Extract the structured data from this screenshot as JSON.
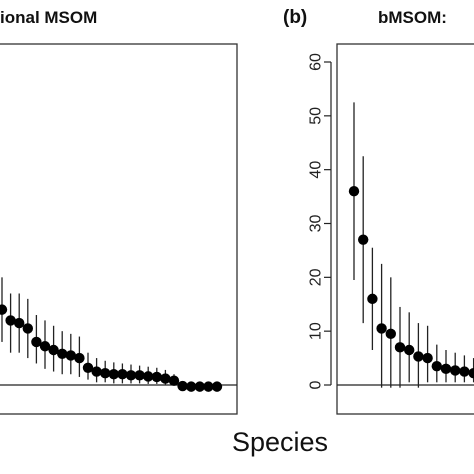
{
  "chart_data": [
    {
      "panel": "a",
      "type": "scatter",
      "title": "ional MSOM",
      "xlabel": "",
      "ylabel": "",
      "ylim": [
        -3,
        64
      ],
      "grid": false,
      "points": [
        {
          "y": 14,
          "lo": 8,
          "hi": 20
        },
        {
          "y": 12,
          "lo": 6,
          "hi": 17
        },
        {
          "y": 11.5,
          "lo": 6,
          "hi": 17
        },
        {
          "y": 10.5,
          "lo": 5,
          "hi": 16
        },
        {
          "y": 8,
          "lo": 4,
          "hi": 13
        },
        {
          "y": 7.2,
          "lo": 3,
          "hi": 12
        },
        {
          "y": 6.5,
          "lo": 2.5,
          "hi": 11
        },
        {
          "y": 5.8,
          "lo": 2,
          "hi": 10
        },
        {
          "y": 5.5,
          "lo": 2,
          "hi": 9.5
        },
        {
          "y": 5,
          "lo": 1.5,
          "hi": 9
        },
        {
          "y": 3.2,
          "lo": 1,
          "hi": 6
        },
        {
          "y": 2.5,
          "lo": 0.5,
          "hi": 5
        },
        {
          "y": 2.2,
          "lo": 0.5,
          "hi": 4.5
        },
        {
          "y": 2,
          "lo": 0.3,
          "hi": 4.2
        },
        {
          "y": 2,
          "lo": 0.3,
          "hi": 4
        },
        {
          "y": 1.8,
          "lo": 0.3,
          "hi": 3.8
        },
        {
          "y": 1.8,
          "lo": 0.3,
          "hi": 3.6
        },
        {
          "y": 1.6,
          "lo": 0.2,
          "hi": 3.4
        },
        {
          "y": 1.5,
          "lo": 0.2,
          "hi": 3.2
        },
        {
          "y": 1.2,
          "lo": 0.1,
          "hi": 2.8
        },
        {
          "y": 0.8,
          "lo": 0.1,
          "hi": 2
        },
        {
          "y": -0.2,
          "lo": -0.4,
          "hi": 0.5
        },
        {
          "y": -0.3,
          "lo": -0.4,
          "hi": 0.3
        },
        {
          "y": -0.3,
          "lo": -0.4,
          "hi": 0.3
        },
        {
          "y": -0.3,
          "lo": -0.4,
          "hi": 0.3
        },
        {
          "y": -0.3,
          "lo": -0.4,
          "hi": 0.3
        }
      ],
      "hline": 0
    },
    {
      "panel": "b",
      "type": "scatter",
      "title": "bMSOM:",
      "xlabel": "",
      "ylabel": "",
      "ylim": [
        -3,
        64
      ],
      "yticks": [
        0,
        10,
        20,
        30,
        40,
        50,
        60
      ],
      "grid": false,
      "points": [
        {
          "y": 36,
          "lo": 19.5,
          "hi": 52.5
        },
        {
          "y": 27,
          "lo": 11.5,
          "hi": 42.5
        },
        {
          "y": 16,
          "lo": 6.5,
          "hi": 25.5
        },
        {
          "y": 10.5,
          "lo": -0.5,
          "hi": 22.5
        },
        {
          "y": 9.5,
          "lo": -0.5,
          "hi": 20
        },
        {
          "y": 7,
          "lo": -0.5,
          "hi": 14.5
        },
        {
          "y": 6.5,
          "lo": 0.5,
          "hi": 13.5
        },
        {
          "y": 5.3,
          "lo": -0.5,
          "hi": 11.5
        },
        {
          "y": 5,
          "lo": 0.5,
          "hi": 11
        },
        {
          "y": 3.5,
          "lo": 0.5,
          "hi": 7.5
        },
        {
          "y": 3,
          "lo": 0.5,
          "hi": 6.5
        },
        {
          "y": 2.7,
          "lo": 0.5,
          "hi": 6
        },
        {
          "y": 2.5,
          "lo": 0.5,
          "hi": 5.5
        },
        {
          "y": 2.2,
          "lo": 0.5,
          "hi": 5
        }
      ],
      "hline": 0
    }
  ],
  "labels": {
    "panel_b_letter": "(b)",
    "x_axis_label": "Species"
  }
}
